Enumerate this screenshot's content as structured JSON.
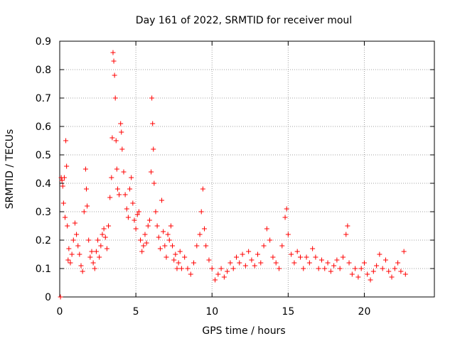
{
  "chart_data": {
    "type": "scatter",
    "title": "Day 161 of 2022, SRMTID for receiver moul",
    "xlabel": "GPS time / hours",
    "ylabel": "SRMTID / TECUs",
    "xlim": [
      0,
      24.6
    ],
    "ylim": [
      0,
      0.9
    ],
    "x_ticks": [
      0,
      5,
      10,
      15,
      20
    ],
    "y_ticks": [
      0,
      0.1,
      0.2,
      0.3,
      0.4,
      0.5,
      0.6,
      0.7,
      0.8,
      0.9
    ],
    "x_tick_labels": [
      "0",
      "5",
      "10",
      "15",
      "20"
    ],
    "y_tick_labels": [
      "0",
      "0.1",
      "0.2",
      "0.3",
      "0.4",
      "0.5",
      "0.6",
      "0.7",
      "0.8",
      "0.9"
    ],
    "grid": true,
    "marker": "+",
    "color": "#ff0000",
    "series": [
      {
        "name": "SRMTID",
        "points": [
          [
            0.05,
            0.0
          ],
          [
            0.1,
            0.42
          ],
          [
            0.15,
            0.41
          ],
          [
            0.2,
            0.39
          ],
          [
            0.25,
            0.33
          ],
          [
            0.3,
            0.42
          ],
          [
            0.35,
            0.28
          ],
          [
            0.4,
            0.55
          ],
          [
            0.45,
            0.46
          ],
          [
            0.5,
            0.25
          ],
          [
            0.55,
            0.13
          ],
          [
            0.6,
            0.17
          ],
          [
            0.7,
            0.12
          ],
          [
            0.8,
            0.15
          ],
          [
            0.9,
            0.2
          ],
          [
            1.0,
            0.26
          ],
          [
            1.1,
            0.22
          ],
          [
            1.2,
            0.18
          ],
          [
            1.3,
            0.15
          ],
          [
            1.4,
            0.11
          ],
          [
            1.5,
            0.09
          ],
          [
            1.6,
            0.3
          ],
          [
            1.7,
            0.45
          ],
          [
            1.75,
            0.38
          ],
          [
            1.8,
            0.32
          ],
          [
            1.9,
            0.2
          ],
          [
            2.0,
            0.14
          ],
          [
            2.1,
            0.16
          ],
          [
            2.2,
            0.12
          ],
          [
            2.3,
            0.1
          ],
          [
            2.4,
            0.16
          ],
          [
            2.5,
            0.2
          ],
          [
            2.6,
            0.14
          ],
          [
            2.7,
            0.18
          ],
          [
            2.8,
            0.22
          ],
          [
            2.9,
            0.24
          ],
          [
            3.0,
            0.21
          ],
          [
            3.1,
            0.17
          ],
          [
            3.2,
            0.25
          ],
          [
            3.3,
            0.35
          ],
          [
            3.4,
            0.42
          ],
          [
            3.45,
            0.56
          ],
          [
            3.5,
            0.86
          ],
          [
            3.55,
            0.83
          ],
          [
            3.6,
            0.78
          ],
          [
            3.65,
            0.7
          ],
          [
            3.7,
            0.55
          ],
          [
            3.75,
            0.45
          ],
          [
            3.8,
            0.38
          ],
          [
            3.9,
            0.36
          ],
          [
            4.0,
            0.61
          ],
          [
            4.05,
            0.58
          ],
          [
            4.1,
            0.52
          ],
          [
            4.2,
            0.44
          ],
          [
            4.3,
            0.36
          ],
          [
            4.4,
            0.31
          ],
          [
            4.5,
            0.28
          ],
          [
            4.6,
            0.38
          ],
          [
            4.7,
            0.42
          ],
          [
            4.8,
            0.33
          ],
          [
            4.9,
            0.27
          ],
          [
            5.0,
            0.24
          ],
          [
            5.1,
            0.29
          ],
          [
            5.2,
            0.3
          ],
          [
            5.3,
            0.2
          ],
          [
            5.4,
            0.16
          ],
          [
            5.5,
            0.18
          ],
          [
            5.6,
            0.22
          ],
          [
            5.7,
            0.19
          ],
          [
            5.8,
            0.25
          ],
          [
            5.9,
            0.27
          ],
          [
            6.0,
            0.44
          ],
          [
            6.05,
            0.7
          ],
          [
            6.1,
            0.61
          ],
          [
            6.15,
            0.52
          ],
          [
            6.2,
            0.4
          ],
          [
            6.3,
            0.3
          ],
          [
            6.4,
            0.25
          ],
          [
            6.5,
            0.21
          ],
          [
            6.6,
            0.17
          ],
          [
            6.7,
            0.34
          ],
          [
            6.8,
            0.23
          ],
          [
            6.9,
            0.18
          ],
          [
            7.0,
            0.14
          ],
          [
            7.1,
            0.22
          ],
          [
            7.2,
            0.2
          ],
          [
            7.3,
            0.25
          ],
          [
            7.4,
            0.18
          ],
          [
            7.5,
            0.13
          ],
          [
            7.6,
            0.15
          ],
          [
            7.7,
            0.1
          ],
          [
            7.8,
            0.12
          ],
          [
            7.9,
            0.16
          ],
          [
            8.0,
            0.1
          ],
          [
            8.2,
            0.14
          ],
          [
            8.4,
            0.1
          ],
          [
            8.6,
            0.08
          ],
          [
            8.8,
            0.12
          ],
          [
            9.0,
            0.18
          ],
          [
            9.2,
            0.22
          ],
          [
            9.3,
            0.3
          ],
          [
            9.4,
            0.38
          ],
          [
            9.5,
            0.24
          ],
          [
            9.6,
            0.18
          ],
          [
            9.8,
            0.13
          ],
          [
            10.0,
            0.1
          ],
          [
            10.2,
            0.06
          ],
          [
            10.4,
            0.08
          ],
          [
            10.6,
            0.1
          ],
          [
            10.8,
            0.07
          ],
          [
            11.0,
            0.09
          ],
          [
            11.2,
            0.12
          ],
          [
            11.4,
            0.1
          ],
          [
            11.6,
            0.14
          ],
          [
            11.8,
            0.12
          ],
          [
            12.0,
            0.15
          ],
          [
            12.2,
            0.11
          ],
          [
            12.4,
            0.16
          ],
          [
            12.6,
            0.13
          ],
          [
            12.8,
            0.11
          ],
          [
            13.0,
            0.15
          ],
          [
            13.2,
            0.12
          ],
          [
            13.4,
            0.18
          ],
          [
            13.6,
            0.24
          ],
          [
            13.8,
            0.2
          ],
          [
            14.0,
            0.14
          ],
          [
            14.2,
            0.12
          ],
          [
            14.4,
            0.1
          ],
          [
            14.6,
            0.18
          ],
          [
            14.8,
            0.28
          ],
          [
            14.9,
            0.31
          ],
          [
            15.0,
            0.22
          ],
          [
            15.2,
            0.15
          ],
          [
            15.4,
            0.12
          ],
          [
            15.6,
            0.16
          ],
          [
            15.8,
            0.14
          ],
          [
            16.0,
            0.1
          ],
          [
            16.2,
            0.14
          ],
          [
            16.4,
            0.12
          ],
          [
            16.6,
            0.17
          ],
          [
            16.8,
            0.14
          ],
          [
            17.0,
            0.1
          ],
          [
            17.2,
            0.13
          ],
          [
            17.4,
            0.1
          ],
          [
            17.6,
            0.12
          ],
          [
            17.8,
            0.09
          ],
          [
            18.0,
            0.11
          ],
          [
            18.2,
            0.13
          ],
          [
            18.4,
            0.1
          ],
          [
            18.6,
            0.14
          ],
          [
            18.8,
            0.22
          ],
          [
            18.9,
            0.25
          ],
          [
            19.0,
            0.12
          ],
          [
            19.2,
            0.08
          ],
          [
            19.4,
            0.1
          ],
          [
            19.6,
            0.07
          ],
          [
            19.8,
            0.1
          ],
          [
            20.0,
            0.12
          ],
          [
            20.2,
            0.08
          ],
          [
            20.4,
            0.06
          ],
          [
            20.6,
            0.09
          ],
          [
            20.8,
            0.11
          ],
          [
            21.0,
            0.15
          ],
          [
            21.2,
            0.1
          ],
          [
            21.4,
            0.13
          ],
          [
            21.6,
            0.09
          ],
          [
            21.8,
            0.07
          ],
          [
            22.0,
            0.1
          ],
          [
            22.2,
            0.12
          ],
          [
            22.4,
            0.09
          ],
          [
            22.6,
            0.16
          ],
          [
            22.7,
            0.08
          ]
        ]
      }
    ]
  }
}
